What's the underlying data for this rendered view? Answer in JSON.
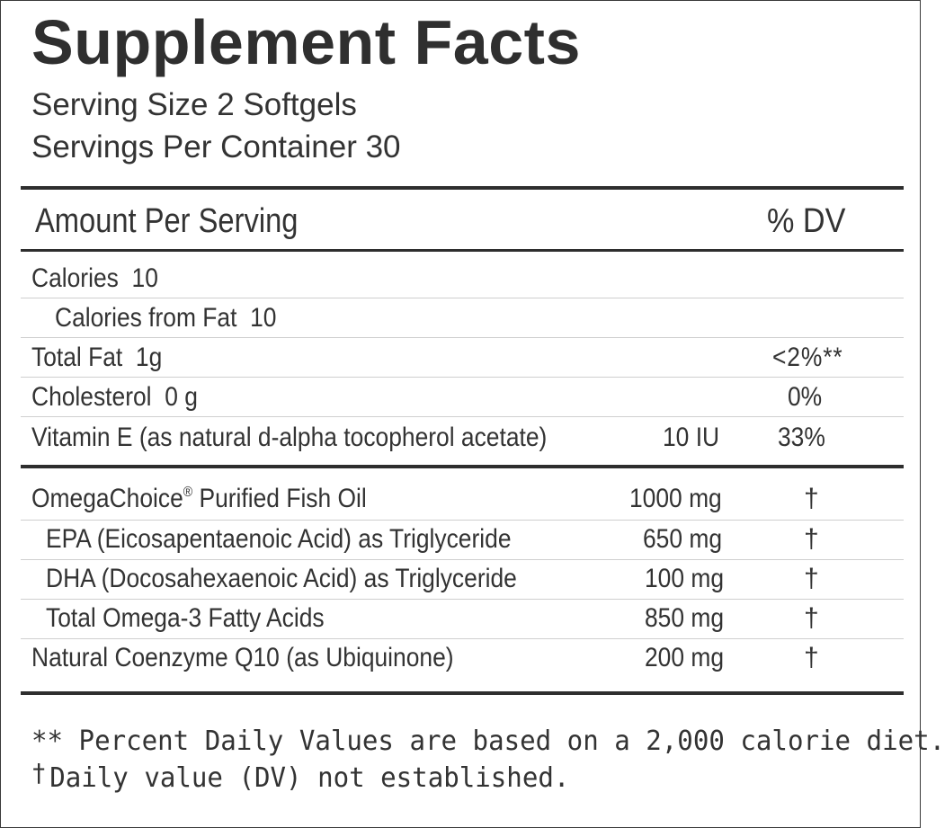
{
  "title": "Supplement Facts",
  "serving_size": "Serving Size 2 Softgels",
  "servings_per_container": "Servings Per Container 30",
  "header": {
    "amount": "Amount Per Serving",
    "dv": "% DV"
  },
  "nutrients": [
    {
      "label": "Calories",
      "amount": "10",
      "dv": ""
    },
    {
      "label": "Calories from Fat",
      "amount": "10",
      "dv": ""
    },
    {
      "label": "Total Fat",
      "amount": "1g",
      "dv": "<2%**"
    },
    {
      "label": "Cholesterol",
      "amount": "0 g",
      "dv": "0%"
    },
    {
      "label": "Vitamin E (as natural d-alpha tocopherol acetate)",
      "amount": "10 IU",
      "dv": "33%"
    }
  ],
  "ingredients": [
    {
      "label": "OmegaChoice",
      "registered": "®",
      "label_suffix": " Purified Fish Oil",
      "amount": "1000 mg",
      "dv": "†"
    },
    {
      "label": "EPA (Eicosapentaenoic Acid) as Triglyceride",
      "amount": "650 mg",
      "dv": "†"
    },
    {
      "label": "DHA (Docosahexaenoic Acid) as Triglyceride",
      "amount": "100 mg",
      "dv": "†"
    },
    {
      "label": "Total Omega-3 Fatty Acids",
      "amount": "850 mg",
      "dv": "†"
    },
    {
      "label": "Natural Coenzyme Q10 (as Ubiquinone)",
      "amount": "200 mg",
      "dv": "†"
    }
  ],
  "footnotes": {
    "percent_dv": "** Percent Daily Values are based on a 2,000 calorie diet.",
    "dagger_symbol": "†",
    "dagger_text": "Daily value (DV) not established."
  }
}
